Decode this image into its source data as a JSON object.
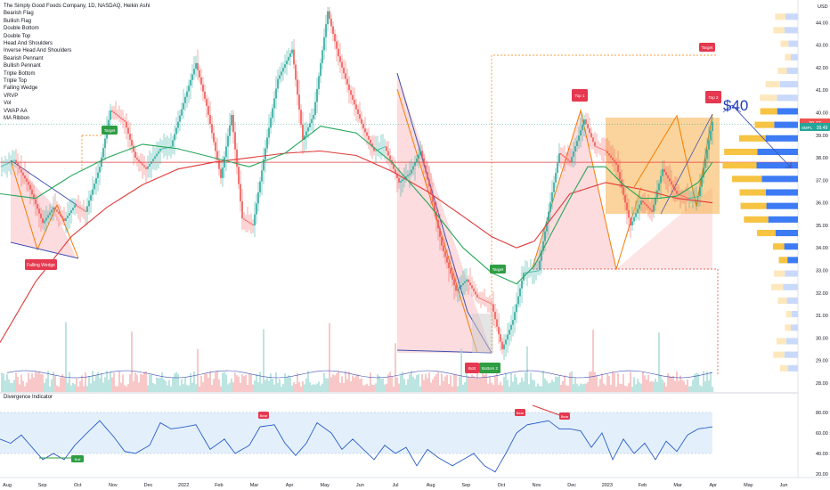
{
  "header": {
    "title": "The Simply Good Foods Company, 1D, NASDAQ, Heikin Ashi",
    "indicators": [
      "Bearish Flag",
      "Bullish Flag",
      "Double Bottom",
      "Double Top",
      "Head And Shoulders",
      "Inverse Head And Shoulders",
      "Bearish Pennant",
      "Bullish Pennant",
      "Triple Bottom",
      "Triple Top",
      "Falling Wedge",
      "VRVP",
      "Vol",
      "VWAP AA",
      "MA Ribbon"
    ]
  },
  "oscillator": {
    "title": "Divergence Indicator",
    "ticks": [
      "80.00",
      "60.00",
      "40.00",
      "20.00"
    ]
  },
  "price_axis": {
    "currency": "USD",
    "ticks": [
      "44.00",
      "43.00",
      "42.00",
      "41.00",
      "40.00",
      "39.00",
      "38.00",
      "37.00",
      "36.00",
      "35.00",
      "34.00",
      "33.00",
      "32.00",
      "31.00",
      "30.00",
      "29.00",
      "28.00"
    ]
  },
  "price_badges": {
    "last": "39.77",
    "symbol": "SMPL",
    "current": "39.49"
  },
  "time_axis": [
    "Aug",
    "Sep",
    "Oct",
    "Nov",
    "Dec",
    "2022",
    "Feb",
    "Mar",
    "Apr",
    "May",
    "Jun",
    "Jul",
    "Aug",
    "Sep",
    "Oct",
    "Nov",
    "Dec",
    "2023",
    "Feb",
    "Mar",
    "Apr",
    "May",
    "Jun"
  ],
  "labels": {
    "falling_wedge": "Falling Wedge",
    "target_1": "Target",
    "target_2": "Target",
    "target_3": "Target",
    "top_1": "Top 1",
    "top_2": "Top 2",
    "bott": "Bott",
    "bottom_2": "Bottom 2",
    "forty": "$40",
    "bull": "Bull",
    "bear_1": "Bear",
    "bear_2": "Bear",
    "bear_3": "Bear"
  },
  "colors": {
    "up": "#26a69a",
    "down": "#ef5350",
    "ma_green": "#26a65b",
    "ma_red": "#e03a3a",
    "rsi": "#2a5cc9",
    "vrvp_blue": "#3d7bf5",
    "vrvp_orange": "#f6c342"
  },
  "chart_data": {
    "type": "candlestick",
    "price_range": [
      28,
      45
    ],
    "heikin_ashi_close_path": [
      [
        0,
        37.6
      ],
      [
        8,
        37.9
      ],
      [
        16,
        36.8
      ],
      [
        24,
        35.1
      ],
      [
        30,
        35.8
      ],
      [
        36,
        35.2
      ],
      [
        42,
        35.9
      ],
      [
        48,
        35.6
      ],
      [
        56,
        37.6
      ],
      [
        62,
        40.1
      ],
      [
        70,
        39.6
      ],
      [
        76,
        38.0
      ],
      [
        82,
        37.5
      ],
      [
        90,
        38.4
      ],
      [
        96,
        38.5
      ],
      [
        104,
        40.7
      ],
      [
        110,
        42.2
      ],
      [
        116,
        40.3
      ],
      [
        124,
        37.1
      ],
      [
        130,
        39.9
      ],
      [
        136,
        35.3
      ],
      [
        142,
        35.0
      ],
      [
        150,
        38.9
      ],
      [
        156,
        41.5
      ],
      [
        164,
        42.8
      ],
      [
        170,
        38.8
      ],
      [
        176,
        39.9
      ],
      [
        184,
        44.5
      ],
      [
        190,
        42.5
      ],
      [
        196,
        41.0
      ],
      [
        204,
        39.3
      ],
      [
        210,
        38.3
      ],
      [
        216,
        38.5
      ],
      [
        224,
        36.9
      ],
      [
        230,
        37.3
      ],
      [
        236,
        38.3
      ],
      [
        242,
        36.4
      ],
      [
        248,
        34.1
      ],
      [
        256,
        32.1
      ],
      [
        262,
        32.6
      ],
      [
        268,
        31.8
      ],
      [
        276,
        31.5
      ],
      [
        282,
        29.5
      ],
      [
        288,
        30.8
      ],
      [
        294,
        32.9
      ],
      [
        302,
        33.0
      ],
      [
        308,
        35.6
      ],
      [
        314,
        38.2
      ],
      [
        320,
        37.8
      ],
      [
        328,
        39.7
      ],
      [
        334,
        38.5
      ],
      [
        340,
        38.3
      ],
      [
        346,
        37.7
      ],
      [
        354,
        35.0
      ],
      [
        360,
        36.1
      ],
      [
        366,
        35.6
      ],
      [
        372,
        37.5
      ],
      [
        380,
        36.4
      ],
      [
        386,
        36.2
      ],
      [
        392,
        36.3
      ],
      [
        400,
        39.6
      ]
    ],
    "ma_green_path": [
      [
        0,
        36.4
      ],
      [
        20,
        36.2
      ],
      [
        40,
        37.2
      ],
      [
        60,
        38.0
      ],
      [
        80,
        38.6
      ],
      [
        100,
        38.4
      ],
      [
        120,
        38.0
      ],
      [
        140,
        37.6
      ],
      [
        160,
        38.2
      ],
      [
        180,
        39.4
      ],
      [
        200,
        39.1
      ],
      [
        220,
        37.8
      ],
      [
        240,
        36.0
      ],
      [
        260,
        34.0
      ],
      [
        276,
        32.9
      ],
      [
        290,
        32.4
      ],
      [
        300,
        33.2
      ],
      [
        320,
        36.2
      ],
      [
        330,
        37.6
      ],
      [
        340,
        37.6
      ],
      [
        350,
        36.8
      ],
      [
        360,
        36.2
      ],
      [
        370,
        36.2
      ],
      [
        380,
        36.3
      ],
      [
        392,
        36.9
      ],
      [
        400,
        37.8
      ]
    ],
    "ma_red_path": [
      [
        0,
        29.8
      ],
      [
        20,
        32.5
      ],
      [
        40,
        34.5
      ],
      [
        60,
        35.8
      ],
      [
        80,
        36.8
      ],
      [
        100,
        37.5
      ],
      [
        120,
        37.8
      ],
      [
        140,
        38.0
      ],
      [
        160,
        38.2
      ],
      [
        180,
        38.3
      ],
      [
        200,
        38.1
      ],
      [
        220,
        37.4
      ],
      [
        240,
        36.5
      ],
      [
        260,
        35.4
      ],
      [
        276,
        34.5
      ],
      [
        290,
        34.0
      ],
      [
        300,
        34.3
      ],
      [
        320,
        36.4
      ],
      [
        340,
        36.9
      ],
      [
        360,
        36.6
      ],
      [
        380,
        36.2
      ],
      [
        400,
        36.0
      ]
    ],
    "rsi_path": [
      [
        0,
        54
      ],
      [
        6,
        50
      ],
      [
        12,
        58
      ],
      [
        18,
        46
      ],
      [
        24,
        34
      ],
      [
        30,
        40
      ],
      [
        36,
        34
      ],
      [
        42,
        48
      ],
      [
        50,
        62
      ],
      [
        56,
        72
      ],
      [
        64,
        56
      ],
      [
        70,
        42
      ],
      [
        76,
        40
      ],
      [
        84,
        48
      ],
      [
        90,
        70
      ],
      [
        96,
        64
      ],
      [
        104,
        66
      ],
      [
        110,
        68
      ],
      [
        118,
        44
      ],
      [
        126,
        54
      ],
      [
        132,
        40
      ],
      [
        140,
        48
      ],
      [
        146,
        66
      ],
      [
        154,
        68
      ],
      [
        160,
        50
      ],
      [
        166,
        38
      ],
      [
        172,
        50
      ],
      [
        178,
        70
      ],
      [
        186,
        60
      ],
      [
        192,
        44
      ],
      [
        198,
        54
      ],
      [
        204,
        44
      ],
      [
        210,
        34
      ],
      [
        216,
        48
      ],
      [
        222,
        40
      ],
      [
        228,
        46
      ],
      [
        234,
        28
      ],
      [
        240,
        44
      ],
      [
        246,
        36
      ],
      [
        254,
        28
      ],
      [
        260,
        34
      ],
      [
        266,
        40
      ],
      [
        272,
        28
      ],
      [
        278,
        22
      ],
      [
        284,
        40
      ],
      [
        290,
        60
      ],
      [
        296,
        68
      ],
      [
        302,
        70
      ],
      [
        308,
        72
      ],
      [
        314,
        64
      ],
      [
        320,
        64
      ],
      [
        326,
        62
      ],
      [
        332,
        46
      ],
      [
        338,
        60
      ],
      [
        344,
        34
      ],
      [
        350,
        54
      ],
      [
        356,
        40
      ],
      [
        362,
        50
      ],
      [
        368,
        34
      ],
      [
        374,
        52
      ],
      [
        380,
        42
      ],
      [
        386,
        58
      ],
      [
        392,
        64
      ],
      [
        400,
        66
      ]
    ],
    "levels": {
      "support_high": 37.8,
      "support_low": 33.0,
      "target_top": 42.7,
      "current": 39.49
    },
    "annotation": "$40"
  }
}
